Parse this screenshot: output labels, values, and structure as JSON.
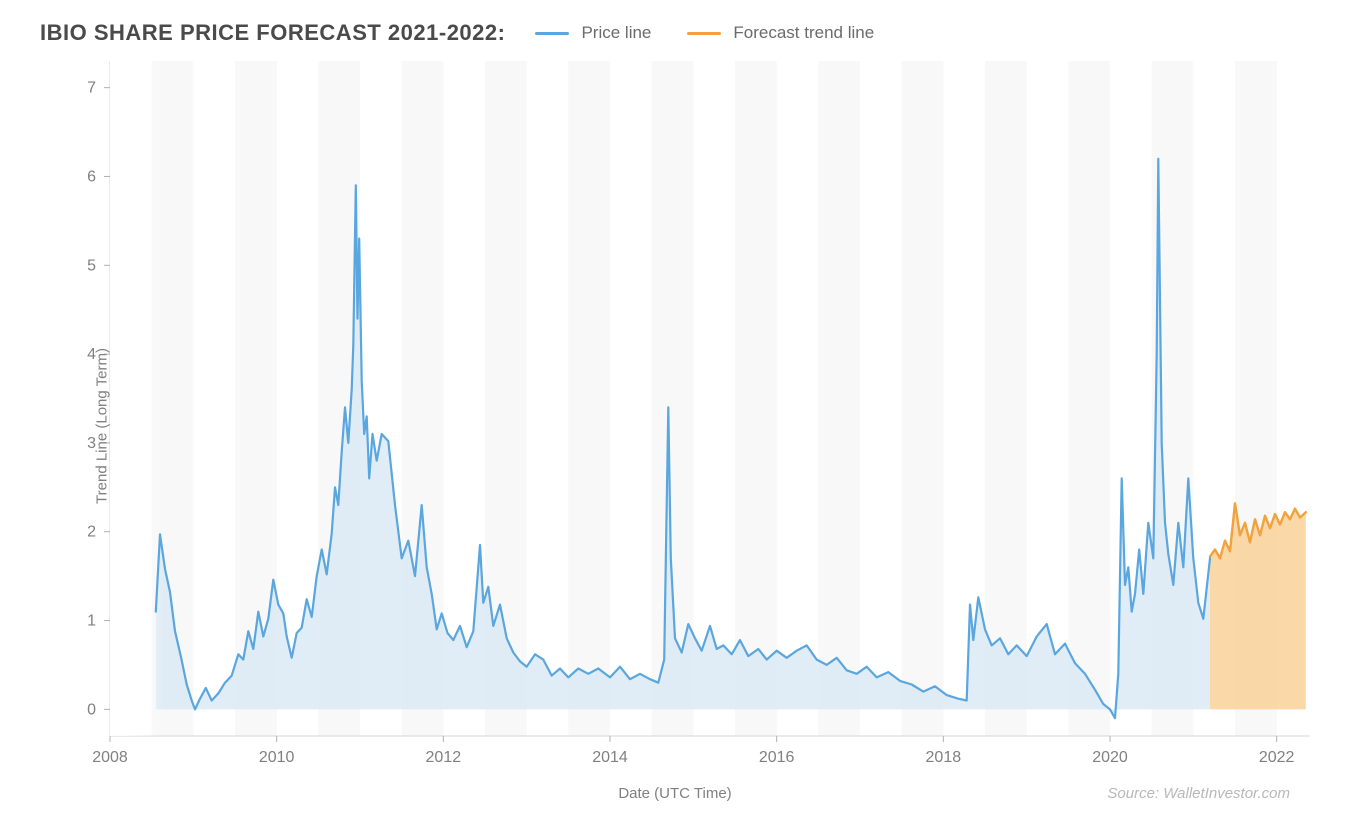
{
  "title": "IBIO SHARE PRICE FORECAST 2021-2022:",
  "legend": {
    "series1": "Price line",
    "series2": "Forecast trend line"
  },
  "axis": {
    "y_label": "Trend Line (Long Term)",
    "x_label": "Date (UTC Time)"
  },
  "source": "Source: WalletInvestor.com",
  "chart": {
    "type": "line-area",
    "background_color": "#ffffff",
    "band_color": "#f3f3f3",
    "band_opacity": 0.55,
    "axis_color": "#d6d6d6",
    "tick_color": "#b0b0b0",
    "tick_label_color": "#808080",
    "tick_fontsize": 16,
    "title_fontsize": 22,
    "legend_fontsize": 17,
    "xlim": [
      2008,
      2022.4
    ],
    "ylim": [
      -0.3,
      7.3
    ],
    "yticks": [
      0,
      1,
      2,
      3,
      4,
      5,
      6,
      7
    ],
    "xticks": [
      2008,
      2010,
      2012,
      2014,
      2016,
      2018,
      2020,
      2022
    ],
    "bands": [
      [
        2008.5,
        2009.0
      ],
      [
        2009.5,
        2010.0
      ],
      [
        2010.5,
        2011.0
      ],
      [
        2011.5,
        2012.0
      ],
      [
        2012.5,
        2013.0
      ],
      [
        2013.5,
        2014.0
      ],
      [
        2014.5,
        2015.0
      ],
      [
        2015.5,
        2016.0
      ],
      [
        2016.5,
        2017.0
      ],
      [
        2017.5,
        2018.0
      ],
      [
        2018.5,
        2019.0
      ],
      [
        2019.5,
        2020.0
      ],
      [
        2020.5,
        2021.0
      ],
      [
        2021.5,
        2022.0
      ]
    ],
    "series": {
      "price": {
        "stroke": "#5aa6df",
        "stroke_width": 2.2,
        "fill": "#dceaf5",
        "fill_opacity": 0.85,
        "points": [
          [
            2008.55,
            1.1
          ],
          [
            2008.6,
            1.97
          ],
          [
            2008.66,
            1.58
          ],
          [
            2008.72,
            1.32
          ],
          [
            2008.78,
            0.88
          ],
          [
            2008.85,
            0.6
          ],
          [
            2008.92,
            0.28
          ],
          [
            2008.98,
            0.1
          ],
          [
            2009.02,
            0.0
          ],
          [
            2009.08,
            0.12
          ],
          [
            2009.15,
            0.24
          ],
          [
            2009.22,
            0.1
          ],
          [
            2009.3,
            0.18
          ],
          [
            2009.38,
            0.3
          ],
          [
            2009.46,
            0.38
          ],
          [
            2009.54,
            0.62
          ],
          [
            2009.6,
            0.56
          ],
          [
            2009.66,
            0.88
          ],
          [
            2009.72,
            0.68
          ],
          [
            2009.78,
            1.1
          ],
          [
            2009.84,
            0.82
          ],
          [
            2009.9,
            1.02
          ],
          [
            2009.96,
            1.46
          ],
          [
            2010.02,
            1.18
          ],
          [
            2010.08,
            1.08
          ],
          [
            2010.12,
            0.82
          ],
          [
            2010.18,
            0.58
          ],
          [
            2010.24,
            0.86
          ],
          [
            2010.3,
            0.92
          ],
          [
            2010.36,
            1.24
          ],
          [
            2010.42,
            1.04
          ],
          [
            2010.48,
            1.5
          ],
          [
            2010.54,
            1.8
          ],
          [
            2010.6,
            1.52
          ],
          [
            2010.66,
            1.98
          ],
          [
            2010.7,
            2.5
          ],
          [
            2010.74,
            2.3
          ],
          [
            2010.78,
            2.9
          ],
          [
            2010.82,
            3.4
          ],
          [
            2010.86,
            3.0
          ],
          [
            2010.9,
            3.6
          ],
          [
            2010.92,
            4.1
          ],
          [
            2010.95,
            5.9
          ],
          [
            2010.97,
            4.4
          ],
          [
            2010.99,
            5.3
          ],
          [
            2011.02,
            3.7
          ],
          [
            2011.05,
            3.1
          ],
          [
            2011.08,
            3.3
          ],
          [
            2011.11,
            2.6
          ],
          [
            2011.15,
            3.1
          ],
          [
            2011.2,
            2.8
          ],
          [
            2011.26,
            3.1
          ],
          [
            2011.34,
            3.02
          ],
          [
            2011.42,
            2.3
          ],
          [
            2011.5,
            1.7
          ],
          [
            2011.58,
            1.9
          ],
          [
            2011.66,
            1.5
          ],
          [
            2011.74,
            2.3
          ],
          [
            2011.8,
            1.6
          ],
          [
            2011.86,
            1.3
          ],
          [
            2011.92,
            0.9
          ],
          [
            2011.98,
            1.08
          ],
          [
            2012.05,
            0.86
          ],
          [
            2012.12,
            0.78
          ],
          [
            2012.2,
            0.94
          ],
          [
            2012.28,
            0.7
          ],
          [
            2012.36,
            0.88
          ],
          [
            2012.44,
            1.85
          ],
          [
            2012.48,
            1.2
          ],
          [
            2012.54,
            1.38
          ],
          [
            2012.6,
            0.94
          ],
          [
            2012.68,
            1.18
          ],
          [
            2012.76,
            0.8
          ],
          [
            2012.84,
            0.64
          ],
          [
            2012.92,
            0.54
          ],
          [
            2013.0,
            0.48
          ],
          [
            2013.1,
            0.62
          ],
          [
            2013.2,
            0.56
          ],
          [
            2013.3,
            0.38
          ],
          [
            2013.4,
            0.46
          ],
          [
            2013.5,
            0.36
          ],
          [
            2013.62,
            0.46
          ],
          [
            2013.74,
            0.4
          ],
          [
            2013.86,
            0.46
          ],
          [
            2014.0,
            0.36
          ],
          [
            2014.12,
            0.48
          ],
          [
            2014.24,
            0.34
          ],
          [
            2014.36,
            0.4
          ],
          [
            2014.48,
            0.34
          ],
          [
            2014.58,
            0.3
          ],
          [
            2014.65,
            0.56
          ],
          [
            2014.7,
            3.4
          ],
          [
            2014.73,
            1.7
          ],
          [
            2014.78,
            0.8
          ],
          [
            2014.86,
            0.64
          ],
          [
            2014.94,
            0.96
          ],
          [
            2015.02,
            0.8
          ],
          [
            2015.1,
            0.66
          ],
          [
            2015.2,
            0.94
          ],
          [
            2015.28,
            0.68
          ],
          [
            2015.36,
            0.72
          ],
          [
            2015.46,
            0.62
          ],
          [
            2015.56,
            0.78
          ],
          [
            2015.66,
            0.6
          ],
          [
            2015.78,
            0.68
          ],
          [
            2015.88,
            0.56
          ],
          [
            2016.0,
            0.66
          ],
          [
            2016.12,
            0.58
          ],
          [
            2016.24,
            0.66
          ],
          [
            2016.36,
            0.72
          ],
          [
            2016.48,
            0.56
          ],
          [
            2016.6,
            0.5
          ],
          [
            2016.72,
            0.58
          ],
          [
            2016.84,
            0.44
          ],
          [
            2016.96,
            0.4
          ],
          [
            2017.08,
            0.48
          ],
          [
            2017.2,
            0.36
          ],
          [
            2017.34,
            0.42
          ],
          [
            2017.48,
            0.32
          ],
          [
            2017.62,
            0.28
          ],
          [
            2017.76,
            0.2
          ],
          [
            2017.9,
            0.26
          ],
          [
            2018.04,
            0.16
          ],
          [
            2018.18,
            0.12
          ],
          [
            2018.28,
            0.1
          ],
          [
            2018.32,
            1.18
          ],
          [
            2018.36,
            0.78
          ],
          [
            2018.42,
            1.26
          ],
          [
            2018.5,
            0.9
          ],
          [
            2018.58,
            0.72
          ],
          [
            2018.68,
            0.8
          ],
          [
            2018.78,
            0.62
          ],
          [
            2018.88,
            0.72
          ],
          [
            2019.0,
            0.6
          ],
          [
            2019.12,
            0.82
          ],
          [
            2019.24,
            0.96
          ],
          [
            2019.34,
            0.62
          ],
          [
            2019.46,
            0.74
          ],
          [
            2019.58,
            0.52
          ],
          [
            2019.7,
            0.4
          ],
          [
            2019.82,
            0.22
          ],
          [
            2019.92,
            0.06
          ],
          [
            2020.0,
            0.0
          ],
          [
            2020.06,
            -0.1
          ],
          [
            2020.1,
            0.4
          ],
          [
            2020.14,
            2.6
          ],
          [
            2020.18,
            1.4
          ],
          [
            2020.22,
            1.6
          ],
          [
            2020.26,
            1.1
          ],
          [
            2020.3,
            1.3
          ],
          [
            2020.35,
            1.8
          ],
          [
            2020.4,
            1.3
          ],
          [
            2020.46,
            2.1
          ],
          [
            2020.52,
            1.7
          ],
          [
            2020.56,
            4.0
          ],
          [
            2020.58,
            6.2
          ],
          [
            2020.62,
            3.0
          ],
          [
            2020.66,
            2.1
          ],
          [
            2020.7,
            1.75
          ],
          [
            2020.76,
            1.4
          ],
          [
            2020.82,
            2.1
          ],
          [
            2020.88,
            1.6
          ],
          [
            2020.94,
            2.6
          ],
          [
            2021.0,
            1.7
          ],
          [
            2021.06,
            1.2
          ],
          [
            2021.12,
            1.02
          ],
          [
            2021.2,
            1.7
          ]
        ]
      },
      "forecast": {
        "stroke": "#f2a23c",
        "stroke_width": 2.4,
        "fill": "#f9cd8f",
        "fill_opacity": 0.78,
        "start_x": 2021.2,
        "points": [
          [
            2021.2,
            1.72
          ],
          [
            2021.26,
            1.8
          ],
          [
            2021.32,
            1.7
          ],
          [
            2021.38,
            1.9
          ],
          [
            2021.44,
            1.78
          ],
          [
            2021.5,
            2.32
          ],
          [
            2021.56,
            1.96
          ],
          [
            2021.62,
            2.1
          ],
          [
            2021.68,
            1.88
          ],
          [
            2021.74,
            2.14
          ],
          [
            2021.8,
            1.96
          ],
          [
            2021.86,
            2.18
          ],
          [
            2021.92,
            2.04
          ],
          [
            2021.98,
            2.2
          ],
          [
            2022.04,
            2.08
          ],
          [
            2022.1,
            2.22
          ],
          [
            2022.16,
            2.14
          ],
          [
            2022.22,
            2.26
          ],
          [
            2022.28,
            2.16
          ],
          [
            2022.35,
            2.22
          ]
        ]
      }
    }
  }
}
